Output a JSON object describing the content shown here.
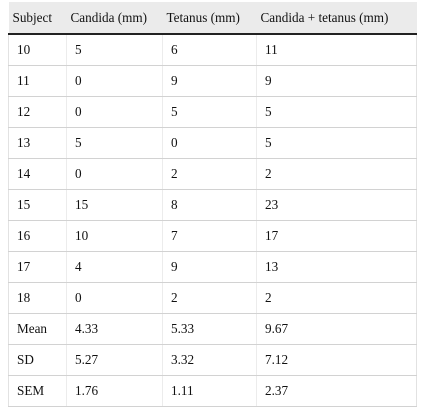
{
  "table": {
    "headers": [
      "Subject",
      "Candida (mm)",
      "Tetanus (mm)",
      "Candida + tetanus (mm)"
    ],
    "rows": [
      [
        "10",
        "5",
        "6",
        "11"
      ],
      [
        "11",
        "0",
        "9",
        "9"
      ],
      [
        "12",
        "0",
        "5",
        "5"
      ],
      [
        "13",
        "5",
        "0",
        "5"
      ],
      [
        "14",
        "0",
        "2",
        "2"
      ],
      [
        "15",
        "15",
        "8",
        "23"
      ],
      [
        "16",
        "10",
        "7",
        "17"
      ],
      [
        "17",
        "4",
        "9",
        "13"
      ],
      [
        "18",
        "0",
        "2",
        "2"
      ],
      [
        "Mean",
        "4.33",
        "5.33",
        "9.67"
      ],
      [
        "SD",
        "5.27",
        "3.32",
        "7.12"
      ],
      [
        "SEM",
        "1.76",
        "1.11",
        "2.37"
      ]
    ]
  }
}
